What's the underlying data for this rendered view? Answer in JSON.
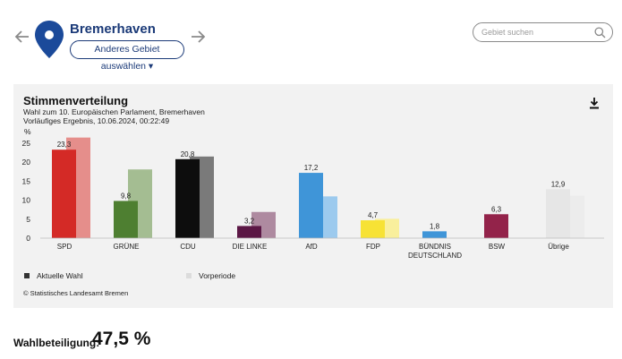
{
  "header": {
    "region_title": "Bremerhaven",
    "change_region_label": "Anderes Gebiet auswählen ▾",
    "search_placeholder": "Gebiet suchen"
  },
  "colors": {
    "brand_blue": "#1b3a78",
    "pin_blue": "#1b4a9a"
  },
  "icons": [
    "arrow-left-icon",
    "map-pin-icon",
    "arrow-right-icon",
    "search-icon",
    "download-icon"
  ],
  "chart_data": {
    "type": "bar",
    "title": "Stimmenverteilung",
    "subtitle": "Wahl zum 10. Europäischen Parlament, Bremerhaven",
    "subtitle2": "Vorläufiges Ergebnis, 10.06.2024, 00:22:49",
    "ylabel": "%",
    "ylim": [
      0,
      25
    ],
    "yticks": [
      0,
      5,
      10,
      15,
      20,
      25
    ],
    "grid": false,
    "legend_position": "bottom-left",
    "categories": [
      "SPD",
      "GRÜNE",
      "CDU",
      "DIE LINKE",
      "AfD",
      "FDP",
      "BÜNDNIS DEUTSCHLAND",
      "BSW",
      "Übrige"
    ],
    "category_labels": [
      [
        "SPD"
      ],
      [
        "GRÜNE"
      ],
      [
        "CDU"
      ],
      [
        "DIE LINKE"
      ],
      [
        "AfD"
      ],
      [
        "FDP"
      ],
      [
        "BÜNDNIS",
        "DEUTSCHLAND"
      ],
      [
        "BSW"
      ],
      [
        "Übrige"
      ]
    ],
    "series": [
      {
        "name": "Aktuelle Wahl",
        "values": [
          23.3,
          9.8,
          20.8,
          3.2,
          17.2,
          4.7,
          1.8,
          6.3,
          12.9
        ],
        "data_labels": [
          "23,3",
          "9,8",
          "20,8",
          "3,2",
          "17,2",
          "4,7",
          "1,8",
          "6,3",
          "12,9"
        ],
        "colors": [
          "#d42a26",
          "#4e7f31",
          "#0d0d0d",
          "#5b1745",
          "#3f95d8",
          "#f7e235",
          "#3f95d8",
          "#93234a",
          "#e6e6e6"
        ]
      },
      {
        "name": "Vorperiode",
        "values": [
          26.5,
          18.1,
          21.5,
          6.9,
          11.0,
          5.1,
          null,
          null,
          11.2
        ],
        "colors": [
          "#e58e8b",
          "#a4bd92",
          "#7a7a7a",
          "#ae8aa0",
          "#9ccaee",
          "#f9ef9c",
          null,
          null,
          "#ececec"
        ]
      }
    ],
    "legend_colors": [
      "#333333",
      "#dcdcdc"
    ],
    "source": "© Statistisches Landesamt Bremen"
  },
  "turnout": {
    "label": "Wahlbeteiligung:",
    "value": "47,5 %"
  }
}
